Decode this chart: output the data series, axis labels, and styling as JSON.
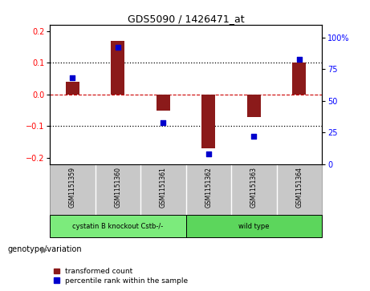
{
  "title": "GDS5090 / 1426471_at",
  "samples": [
    "GSM1151359",
    "GSM1151360",
    "GSM1151361",
    "GSM1151362",
    "GSM1151363",
    "GSM1151364"
  ],
  "bar_values": [
    0.04,
    0.17,
    -0.05,
    -0.17,
    -0.07,
    0.1
  ],
  "dot_values": [
    68,
    92,
    33,
    8,
    22,
    83
  ],
  "bar_color": "#8B1A1A",
  "dot_color": "#0000CD",
  "ylim_left": [
    -0.22,
    0.22
  ],
  "ylim_right": [
    0,
    110
  ],
  "yticks_left": [
    -0.2,
    -0.1,
    0,
    0.1,
    0.2
  ],
  "yticks_right": [
    0,
    25,
    50,
    75,
    100
  ],
  "hline_color": "#CC0000",
  "dotted_color": "black",
  "groups": [
    {
      "label": "cystatin B knockout Cstb-/-",
      "samples": [
        0,
        1,
        2
      ],
      "color": "#7CEB7C"
    },
    {
      "label": "wild type",
      "samples": [
        3,
        4,
        5
      ],
      "color": "#5CD65C"
    }
  ],
  "genotype_label": "genotype/variation",
  "legend_bar_label": "transformed count",
  "legend_dot_label": "percentile rank within the sample",
  "bg_color": "#FFFFFF",
  "plot_bg": "#FFFFFF",
  "sample_bg": "#C8C8C8",
  "bar_width": 0.3
}
